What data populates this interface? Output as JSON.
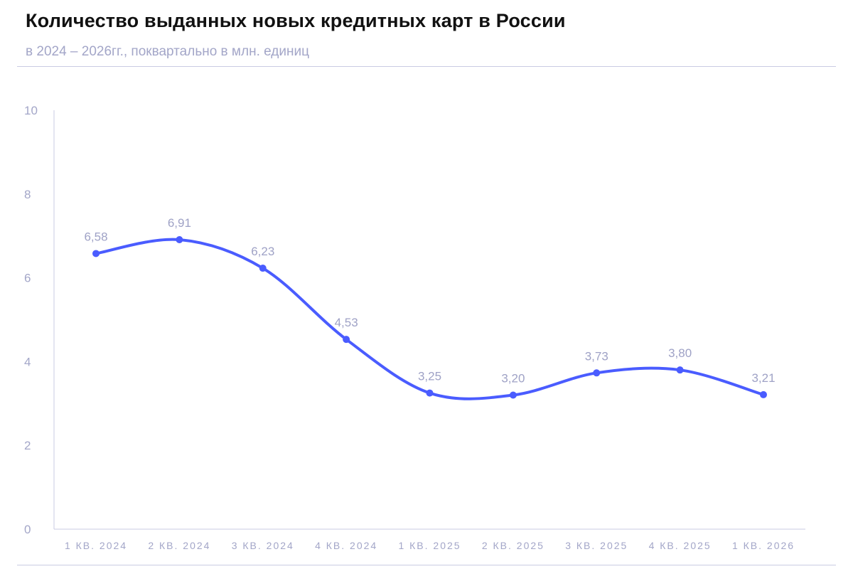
{
  "header": {
    "title": "Количество выданных новых кредитных карт в России",
    "subtitle": "в 2024 – 2026гг., поквартально в млн. единиц"
  },
  "colors": {
    "line": "#4a5cff",
    "axis": "#c9cbe3",
    "text_muted": "#a3a6c8"
  },
  "chart_data": {
    "type": "line",
    "categories": [
      "1 КВ. 2024",
      "2 КВ. 2024",
      "3 КВ. 2024",
      "4 КВ. 2024",
      "1 КВ. 2025",
      "2 КВ. 2025",
      "3 КВ. 2025",
      "4 КВ. 2025",
      "1 КВ. 2026"
    ],
    "values": [
      6.58,
      6.91,
      6.23,
      4.53,
      3.25,
      3.2,
      3.73,
      3.8,
      3.21
    ],
    "data_labels": [
      "6,58",
      "6,91",
      "6,23",
      "4,53",
      "3,25",
      "3,20",
      "3,73",
      "3,80",
      "3,21"
    ],
    "yticks": [
      0,
      2,
      4,
      6,
      8,
      10
    ],
    "ylim": [
      0,
      10
    ],
    "grid": false,
    "smooth": true
  }
}
